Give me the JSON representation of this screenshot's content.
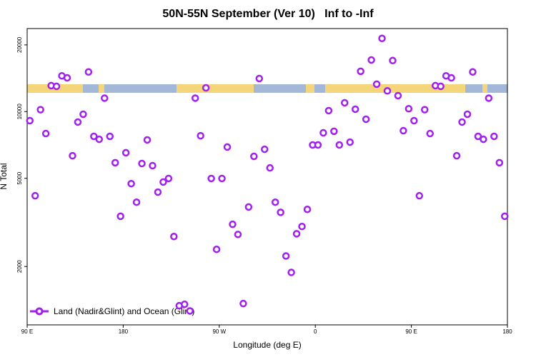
{
  "chart_data": {
    "type": "scatter",
    "title": "50N-55N September (Ver 10)   Inf to -Inf",
    "xlabel": "Longitude (deg E)",
    "ylabel": "N Total",
    "xlim": [
      90,
      540
    ],
    "xticks": [
      {
        "value": 90,
        "label": "90 E"
      },
      {
        "value": 180,
        "label": "180"
      },
      {
        "value": 270,
        "label": "90 W"
      },
      {
        "value": 360,
        "label": "0"
      },
      {
        "value": 450,
        "label": "90 E"
      },
      {
        "value": 540,
        "label": "180"
      }
    ],
    "ylim": [
      1090,
      23700
    ],
    "yticks": [
      2000,
      5000,
      10000,
      20000
    ],
    "log_y": true,
    "legend": "bottom-left",
    "x": [
      92.5,
      97.5,
      102.5,
      107.5,
      112.5,
      117.5,
      122.5,
      127.5,
      132.5,
      137.5,
      142.5,
      147.5,
      152.5,
      157.5,
      162.5,
      167.5,
      172.5,
      177.5,
      182.5,
      187.5,
      192.5,
      197.5,
      202.5,
      207.5,
      212.5,
      217.5,
      222.5,
      227.5,
      232.5,
      237.5,
      242.5,
      247.5,
      252.5,
      257.5,
      262.5,
      267.5,
      272.5,
      277.5,
      282.5,
      287.5,
      292.5,
      297.5,
      302.5,
      307.5,
      312.5,
      317.5,
      322.5,
      327.5,
      332.5,
      337.5,
      342.5,
      347.5,
      352.5,
      357.5,
      362.5,
      367.5,
      372.5,
      377.5,
      382.5,
      387.5,
      392.5,
      397.5,
      402.5,
      407.5,
      412.5,
      417.5,
      422.5,
      427.5,
      432.5,
      437.5,
      442.5,
      447.5,
      452.5,
      457.5,
      462.5,
      467.5,
      472.5,
      477.5,
      482.5,
      487.5,
      492.5,
      497.5,
      502.5,
      507.5,
      512.5,
      517.5,
      522.5,
      527.5,
      532.5,
      537.5
    ],
    "series": [
      {
        "name": "Land (Nadir&Glint) and Ocean (Glint)",
        "color": "#a020f0",
        "values": [
          9100,
          4170,
          10200,
          7960,
          13100,
          13000,
          14500,
          14200,
          6320,
          8970,
          9730,
          15100,
          7730,
          7500,
          11500,
          7730,
          5880,
          3370,
          6520,
          4730,
          3900,
          5830,
          7450,
          5700,
          4330,
          4810,
          4990,
          2730,
          1330,
          1350,
          1260,
          11500,
          7780,
          12800,
          4990,
          2390,
          4990,
          6920,
          3100,
          2790,
          1360,
          3710,
          6280,
          14100,
          6760,
          5570,
          3900,
          3510,
          2230,
          1880,
          2810,
          3030,
          3620,
          7070,
          7070,
          8020,
          10100,
          8150,
          7070,
          10960,
          7280,
          10250,
          15200,
          9240,
          17100,
          13300,
          21400,
          12400,
          17000,
          11800,
          8200,
          10300,
          9100,
          4170,
          10200,
          7960,
          13100,
          13000,
          14500,
          14200,
          6320,
          8970,
          9730,
          15100,
          7730,
          7500,
          11500,
          7730,
          5880,
          3370
        ]
      }
    ]
  }
}
